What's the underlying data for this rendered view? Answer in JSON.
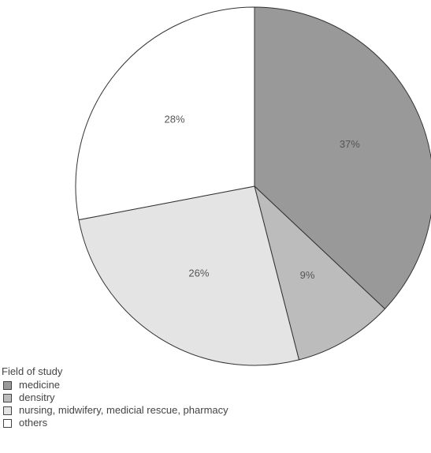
{
  "chart_data": {
    "type": "pie",
    "start_angle": "12 o'clock",
    "direction": "clockwise",
    "slices": [
      {
        "label": "medicine",
        "value": 37,
        "value_label": "37%",
        "color": "#999999"
      },
      {
        "label": "densitry",
        "value": 9,
        "value_label": "9%",
        "color": "#bcbcbc"
      },
      {
        "label": "nursing, midwifery, medicial rescue, pharmacy",
        "value": 26,
        "value_label": "26%",
        "color": "#e4e4e4"
      },
      {
        "label": "others",
        "value": 28,
        "value_label": "28%",
        "color": "#ffffff"
      }
    ],
    "legend": {
      "title": "Field of study",
      "placement": "bottom-left"
    },
    "edge_color": "#333333"
  }
}
